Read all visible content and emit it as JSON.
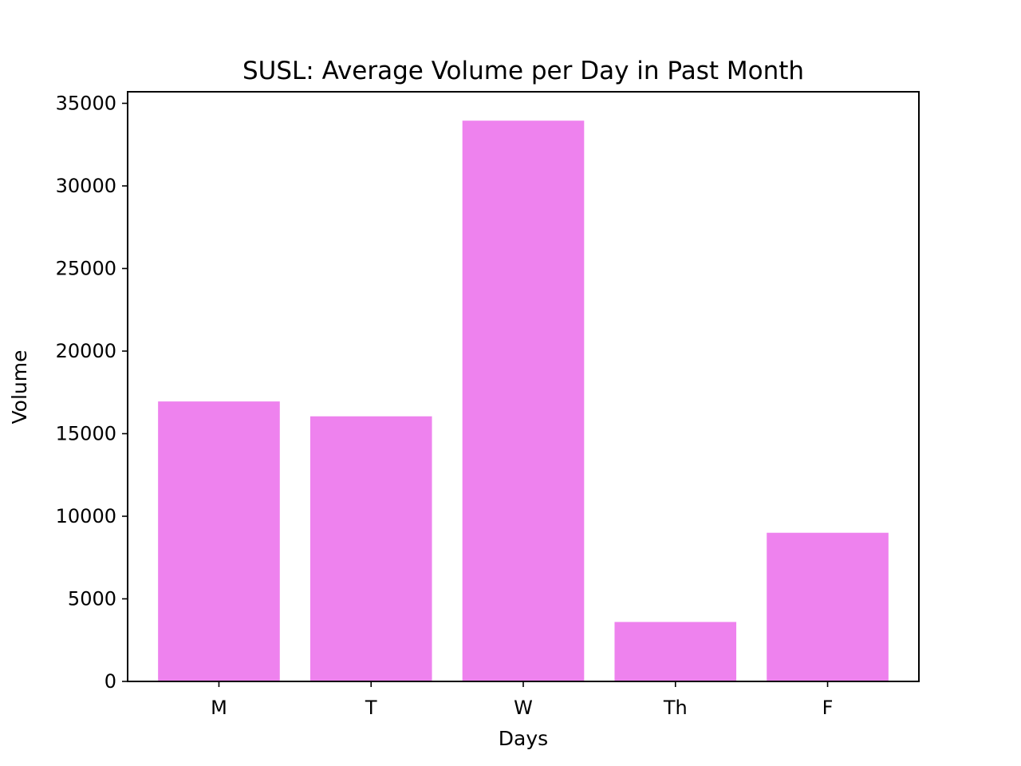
{
  "chart_data": {
    "type": "bar",
    "title": "SUSL: Average Volume per Day in Past Month",
    "xlabel": "Days",
    "ylabel": "Volume",
    "categories": [
      "M",
      "T",
      "W",
      "Th",
      "F"
    ],
    "values": [
      16950,
      16050,
      33950,
      3600,
      9000
    ],
    "ylim": [
      0,
      35700
    ],
    "yticks": [
      0,
      5000,
      10000,
      15000,
      20000,
      25000,
      30000,
      35000
    ],
    "bar_color": "#ee82ee",
    "grid": false,
    "legend": false
  }
}
